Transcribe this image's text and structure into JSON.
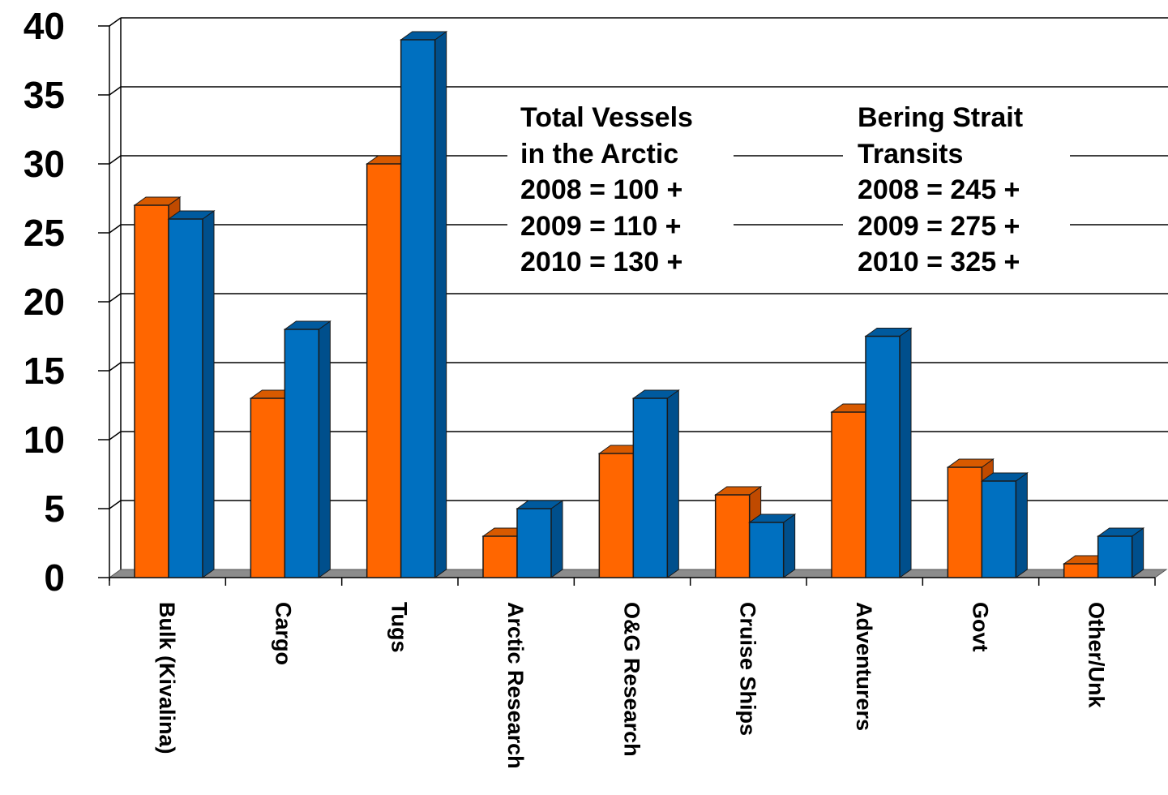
{
  "chart_data": {
    "type": "bar",
    "title": "",
    "xlabel": "",
    "ylabel": "",
    "ylim": [
      0,
      40
    ],
    "yticks": [
      0,
      5,
      10,
      15,
      20,
      25,
      30,
      35,
      40
    ],
    "grid": true,
    "style": "3d-clustered-columns",
    "categories": [
      "Bulk (Kivalina)",
      "Cargo",
      "Tugs",
      "Arctic Research",
      "O&G Research",
      "Cruise Ships",
      "Adventurers",
      "Govt",
      "Other/Unk"
    ],
    "series": [
      {
        "color": "#ff6600",
        "values": [
          27,
          13,
          30,
          3,
          9,
          6,
          12,
          8,
          1
        ]
      },
      {
        "color": "#0070c0",
        "values": [
          26,
          18,
          39,
          5,
          13,
          4,
          17.5,
          7,
          3
        ]
      }
    ],
    "annotations": [
      {
        "lines": [
          "Total Vessels",
          "in the Arctic",
          "2008 = 100 +",
          "2009 = 110 +",
          "2010 = 130 +"
        ]
      },
      {
        "lines": [
          "Bering Strait",
          "Transits",
          "2008 = 245 +",
          "2009 = 275 +",
          "2010 = 325 +"
        ]
      }
    ]
  },
  "colors": {
    "grid": "#000000",
    "floor": "#8c8c8c",
    "orange_side": "#c04a00",
    "orange_top": "#d85a00",
    "blue_side": "#004f8c",
    "blue_top": "#005a9e"
  }
}
